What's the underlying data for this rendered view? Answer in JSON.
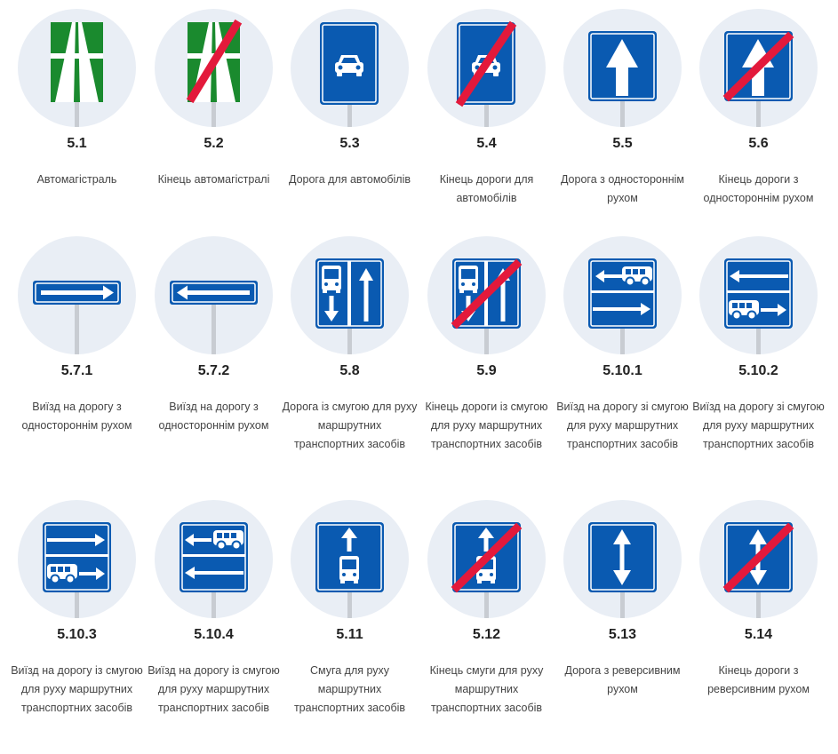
{
  "signs": [
    {
      "code": "5.1",
      "name": "Автомагістраль",
      "icon": "motorway-sign-icon"
    },
    {
      "code": "5.2",
      "name": "Кінець автомагістралі",
      "icon": "end-of-motorway-sign-icon"
    },
    {
      "code": "5.3",
      "name": "Дорога для автомобілів",
      "icon": "road-for-cars-sign-icon"
    },
    {
      "code": "5.4",
      "name": "Кінець дороги для автомобілів",
      "icon": "end-of-road-for-cars-sign-icon"
    },
    {
      "code": "5.5",
      "name": "Дорога з одностороннім рухом",
      "icon": "one-way-road-sign-icon"
    },
    {
      "code": "5.6",
      "name": "Кінець дороги з одностороннім рухом",
      "icon": "end-of-one-way-road-sign-icon"
    },
    {
      "code": "5.7.1",
      "name": "Виїзд на дорогу з одностороннім рухом",
      "icon": "exit-one-way-right-sign-icon"
    },
    {
      "code": "5.7.2",
      "name": "Виїзд на дорогу з одностороннім рухом",
      "icon": "exit-one-way-left-sign-icon"
    },
    {
      "code": "5.8",
      "name": "Дорога із смугою для руху маршрутних транспортних засобів",
      "icon": "bus-lane-road-sign-icon"
    },
    {
      "code": "5.9",
      "name": "Кінець дороги із смугою для руху маршрутних транспортних засобів",
      "icon": "end-of-bus-lane-road-sign-icon"
    },
    {
      "code": "5.10.1",
      "name": "Виїзд на дорогу зі смугою для руху маршрутних транспортних засобів",
      "icon": "exit-bus-lane-1-sign-icon"
    },
    {
      "code": "5.10.2",
      "name": "Виїзд на дорогу зі смугою для руху маршрутних транспортних засобів",
      "icon": "exit-bus-lane-2-sign-icon"
    },
    {
      "code": "5.10.3",
      "name": "Виїзд на дорогу із смугою для руху маршрутних транспортних засобів",
      "icon": "exit-bus-lane-3-sign-icon"
    },
    {
      "code": "5.10.4",
      "name": "Виїзд на дорогу із смугою для руху маршрутних транспортних засобів",
      "icon": "exit-bus-lane-4-sign-icon"
    },
    {
      "code": "5.11",
      "name": "Смуга для руху маршрутних транспортних засобів",
      "icon": "bus-lane-sign-icon"
    },
    {
      "code": "5.12",
      "name": "Кінець смуги для руху маршрутних транспортних засобів",
      "icon": "end-of-bus-lane-sign-icon"
    },
    {
      "code": "5.13",
      "name": "Дорога з реверсивним рухом",
      "icon": "reversible-road-sign-icon"
    },
    {
      "code": "5.14",
      "name": "Кінець дороги з реверсивним рухом",
      "icon": "end-of-reversible-road-sign-icon"
    }
  ],
  "colors": {
    "blue": "#0a5ab1",
    "green": "#1a8a2e",
    "red": "#e3193b",
    "circle": "#e9eef5",
    "pole": "#c8ccd2"
  }
}
